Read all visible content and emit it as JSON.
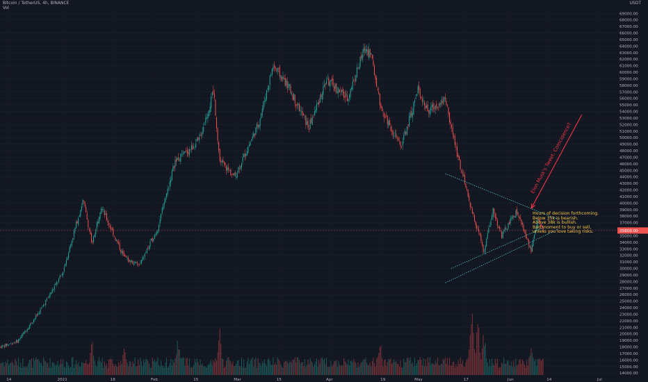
{
  "header": {
    "symbol_line": "Bitcoin / TetherUS, 4h, BINANCE",
    "vol_label": "Vol",
    "unit_label": "USDT"
  },
  "note": {
    "lines": [
      "Hours of decision forthcoming.",
      "Below 35k is bearish.",
      "Above 38k is bullish.",
      "Bad moment to buy or sell,",
      "unless you love taking risks."
    ]
  },
  "arrow": {
    "label": "Elon Musk's Tweet. Coincidence?"
  },
  "colors": {
    "background": "#131722",
    "up": "#26a69a",
    "down": "#ef5350",
    "annotation": "#f23645",
    "note_text": "#f5c542",
    "trendline": "#4fc3c8"
  },
  "chart_data": {
    "type": "candlestick",
    "title": "Bitcoin / TetherUS, 4h, BINANCE",
    "ylabel": "USDT",
    "y_ticks": [
      14000,
      15000,
      16000,
      17000,
      18000,
      19000,
      20000,
      21000,
      22000,
      23000,
      24000,
      25000,
      26000,
      27000,
      28000,
      29000,
      30000,
      31000,
      32000,
      33000,
      34000,
      35000,
      36000,
      37000,
      38000,
      39000,
      40000,
      41000,
      42000,
      43000,
      44000,
      45000,
      46000,
      47000,
      48000,
      49000,
      50000,
      51000,
      52000,
      53000,
      54000,
      55000,
      56000,
      57000,
      58000,
      59000,
      60000,
      61000,
      62000,
      63000,
      64000,
      65000,
      66000,
      67000,
      68000,
      69000
    ],
    "y_tick_labels": [
      "14000.00",
      "15000.00",
      "16000.00",
      "17000.00",
      "18000.00",
      "19000.00",
      "20000.00",
      "21000.00",
      "22000.00",
      "23000.00",
      "24000.00",
      "25000.00",
      "26000.00",
      "27000.00",
      "28000.00",
      "29000.00",
      "30000.00",
      "31000.00",
      "32000.00",
      "33000.00",
      "34000.00",
      "35000.00",
      "36000.00",
      "37000.00",
      "38000.00",
      "39000.00",
      "40000.00",
      "41000.00",
      "42000.00",
      "43000.00",
      "44000.00",
      "45000.00",
      "46000.00",
      "47000.00",
      "48000.00",
      "49000.00",
      "50000.00",
      "51000.00",
      "52000.00",
      "53000.00",
      "54000.00",
      "55000.00",
      "56000.00",
      "57000.00",
      "58000.00",
      "59000.00",
      "60000.00",
      "61000.00",
      "62000.00",
      "63000.00",
      "64000.00",
      "65000.00",
      "66000.00",
      "67000.00",
      "68000.00",
      "69000.00"
    ],
    "ylim": [
      13700,
      70200
    ],
    "x_labels": [
      "14",
      "2021",
      "18",
      "Feb",
      "15",
      "Mar",
      "15",
      "Apr",
      "19",
      "May",
      "17",
      "Jun",
      "14",
      "Jul"
    ],
    "x_dates": [
      "2020-12-14",
      "2021-01-01",
      "2021-01-18",
      "2021-02-01",
      "2021-02-15",
      "2021-03-01",
      "2021-03-15",
      "2021-04-01",
      "2021-04-19",
      "2021-05-01",
      "2021-05-17",
      "2021-06-01",
      "2021-06-14",
      "2021-07-01"
    ],
    "xlim": [
      "2020-12-11",
      "2021-07-07"
    ],
    "last_price": 35800,
    "last_price_label": "35800.00",
    "price_path": [
      [
        "2020-12-11",
        18000
      ],
      [
        "2020-12-17",
        18900
      ],
      [
        "2020-12-24",
        23200
      ],
      [
        "2021-01-01",
        29200
      ],
      [
        "2021-01-08",
        40500
      ],
      [
        "2021-01-11",
        33800
      ],
      [
        "2021-01-14",
        39500
      ],
      [
        "2021-01-22",
        31500
      ],
      [
        "2021-01-27",
        30500
      ],
      [
        "2021-02-02",
        36000
      ],
      [
        "2021-02-08",
        46500
      ],
      [
        "2021-02-12",
        47800
      ],
      [
        "2021-02-16",
        49500
      ],
      [
        "2021-02-21",
        57000
      ],
      [
        "2021-02-23",
        46500
      ],
      [
        "2021-02-28",
        44000
      ],
      [
        "2021-03-08",
        52000
      ],
      [
        "2021-03-13",
        61000
      ],
      [
        "2021-03-18",
        58000
      ],
      [
        "2021-03-25",
        51500
      ],
      [
        "2021-03-31",
        58800
      ],
      [
        "2021-04-07",
        56000
      ],
      [
        "2021-04-13",
        63800
      ],
      [
        "2021-04-15",
        62800
      ],
      [
        "2021-04-18",
        55000
      ],
      [
        "2021-04-25",
        48500
      ],
      [
        "2021-05-01",
        57500
      ],
      [
        "2021-05-04",
        54000
      ],
      [
        "2021-05-10",
        56000
      ],
      [
        "2021-05-13",
        49500
      ],
      [
        "2021-05-19",
        38500
      ],
      [
        "2021-05-21",
        36000
      ],
      [
        "2021-05-23",
        32500
      ],
      [
        "2021-05-26",
        39000
      ],
      [
        "2021-05-29",
        35000
      ],
      [
        "2021-06-03",
        38800
      ],
      [
        "2021-06-08",
        32700
      ],
      [
        "2021-06-10",
        37500
      ],
      [
        "2021-06-12",
        35800
      ]
    ],
    "trendlines": [
      {
        "from": [
          "2021-05-10",
          44500
        ],
        "to": [
          "2021-06-17",
          37500
        ]
      },
      {
        "from": [
          "2021-05-10",
          27800
        ],
        "to": [
          "2021-06-17",
          36000
        ]
      },
      {
        "from": [
          "2021-05-12",
          30000
        ],
        "to": [
          "2021-06-12",
          36200
        ]
      }
    ],
    "arrow": {
      "from": [
        "2021-06-08",
        39200
      ],
      "to": [
        "2021-06-25",
        53500
      ]
    },
    "volume_axis_bottom_price": 14000,
    "volume_spikes": [
      [
        "2021-01-11",
        0.45
      ],
      [
        "2021-01-22",
        0.4
      ],
      [
        "2021-02-09",
        0.5
      ],
      [
        "2021-02-23",
        0.55
      ],
      [
        "2021-04-18",
        0.45
      ],
      [
        "2021-05-19",
        1.0
      ],
      [
        "2021-05-21",
        0.75
      ],
      [
        "2021-05-23",
        0.6
      ],
      [
        "2021-06-08",
        0.5
      ]
    ]
  }
}
